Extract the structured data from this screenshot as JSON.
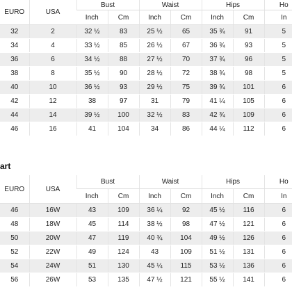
{
  "top_table": {
    "columns": [
      "EURO",
      "USA",
      "Bust",
      "Waist",
      "Hips",
      "Ho"
    ],
    "subcolumns": [
      "Inch",
      "Cm",
      "Inch",
      "Cm",
      "Inch",
      "Cm",
      "In"
    ],
    "rows": [
      [
        "32",
        "2",
        "32 ½",
        "83",
        "25 ½",
        "65",
        "35 ¾",
        "91",
        "5"
      ],
      [
        "34",
        "4",
        "33 ½",
        "85",
        "26 ½",
        "67",
        "36 ¾",
        "93",
        "5"
      ],
      [
        "36",
        "6",
        "34 ½",
        "88",
        "27 ½",
        "70",
        "37 ¾",
        "96",
        "5"
      ],
      [
        "38",
        "8",
        "35 ½",
        "90",
        "28 ½",
        "72",
        "38 ¾",
        "98",
        "5"
      ],
      [
        "40",
        "10",
        "36 ½",
        "93",
        "29 ½",
        "75",
        "39 ¾",
        "101",
        "6"
      ],
      [
        "42",
        "12",
        "38",
        "97",
        "31",
        "79",
        "41 ¼",
        "105",
        "6"
      ],
      [
        "44",
        "14",
        "39 ½",
        "100",
        "32 ½",
        "83",
        "42 ¾",
        "109",
        "6"
      ],
      [
        "46",
        "16",
        "41",
        "104",
        "34",
        "86",
        "44 ¼",
        "112",
        "6"
      ]
    ]
  },
  "section_label": "art",
  "bottom_table": {
    "columns": [
      "EURO",
      "USA",
      "Bust",
      "Waist",
      "Hips",
      "Ho"
    ],
    "subcolumns": [
      "Inch",
      "Cm",
      "Inch",
      "Cm",
      "Inch",
      "Cm",
      "In"
    ],
    "rows": [
      [
        "46",
        "16W",
        "43",
        "109",
        "36 ¼",
        "92",
        "45 ½",
        "116",
        "6"
      ],
      [
        "48",
        "18W",
        "45",
        "114",
        "38 ½",
        "98",
        "47 ½",
        "121",
        "6"
      ],
      [
        "50",
        "20W",
        "47",
        "119",
        "40 ¾",
        "104",
        "49 ½",
        "126",
        "6"
      ],
      [
        "52",
        "22W",
        "49",
        "124",
        "43",
        "109",
        "51 ½",
        "131",
        "6"
      ],
      [
        "54",
        "24W",
        "51",
        "130",
        "45 ¼",
        "115",
        "53 ½",
        "136",
        "6"
      ],
      [
        "56",
        "26W",
        "53",
        "135",
        "47 ½",
        "121",
        "55 ½",
        "141",
        "6"
      ]
    ]
  }
}
